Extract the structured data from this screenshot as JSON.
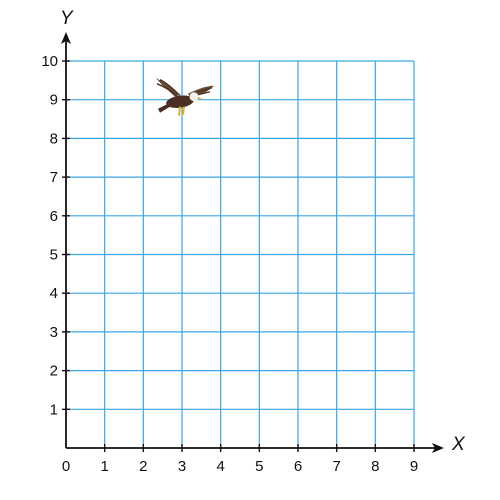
{
  "chart_data": {
    "type": "scatter",
    "xlabel": "X",
    "ylabel": "Y",
    "xlim": [
      0,
      9
    ],
    "ylim": [
      0,
      10
    ],
    "x_ticks": [
      "0",
      "1",
      "2",
      "3",
      "4",
      "5",
      "6",
      "7",
      "8",
      "9"
    ],
    "y_ticks": [
      "1",
      "2",
      "3",
      "4",
      "5",
      "6",
      "7",
      "8",
      "9",
      "10"
    ],
    "grid": true,
    "points": [
      {
        "x": 3,
        "y": 9,
        "marker": "eagle-icon"
      }
    ]
  },
  "colors": {
    "grid": "#3aa6e8",
    "axis": "#111111",
    "eagle_body": "#4a2f22",
    "eagle_wing": "#6b4a36",
    "eagle_head": "#f2f2ee",
    "eagle_beak": "#e7b21d"
  }
}
